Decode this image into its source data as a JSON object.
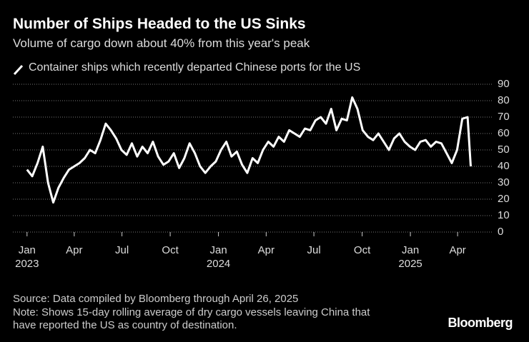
{
  "chart_data": {
    "type": "line",
    "title": "Number of Ships Headed to the US Sinks",
    "subtitle": "Volume of cargo down about 40% from this year's peak",
    "source": "Source: Data compiled by Bloomberg through April 26, 2025",
    "note": "Note: Shows 15-day rolling average of dry cargo vessels leaving China that have reported the US as country of destination.",
    "brand": "Bloomberg",
    "x": [
      "2023-01-01",
      "2023-01-11",
      "2023-01-21",
      "2023-01-31",
      "2023-02-10",
      "2023-02-20",
      "2023-03-02",
      "2023-03-12",
      "2023-03-22",
      "2023-04-01",
      "2023-04-11",
      "2023-04-21",
      "2023-05-01",
      "2023-05-11",
      "2023-05-21",
      "2023-05-31",
      "2023-06-10",
      "2023-06-20",
      "2023-06-30",
      "2023-07-10",
      "2023-07-20",
      "2023-07-30",
      "2023-08-09",
      "2023-08-19",
      "2023-08-29",
      "2023-09-08",
      "2023-09-18",
      "2023-09-28",
      "2023-10-08",
      "2023-10-18",
      "2023-10-28",
      "2023-11-07",
      "2023-11-17",
      "2023-11-27",
      "2023-12-07",
      "2023-12-17",
      "2023-12-27",
      "2024-01-06",
      "2024-01-16",
      "2024-01-26",
      "2024-02-05",
      "2024-02-15",
      "2024-02-25",
      "2024-03-06",
      "2024-03-16",
      "2024-03-26",
      "2024-04-05",
      "2024-04-15",
      "2024-04-25",
      "2024-05-05",
      "2024-05-15",
      "2024-05-25",
      "2024-06-04",
      "2024-06-14",
      "2024-06-24",
      "2024-07-04",
      "2024-07-14",
      "2024-07-24",
      "2024-08-03",
      "2024-08-13",
      "2024-08-23",
      "2024-09-02",
      "2024-09-12",
      "2024-09-22",
      "2024-10-02",
      "2024-10-12",
      "2024-10-22",
      "2024-11-01",
      "2024-11-11",
      "2024-11-21",
      "2024-12-01",
      "2024-12-11",
      "2024-12-21",
      "2024-12-31",
      "2025-01-10",
      "2025-01-20",
      "2025-01-30",
      "2025-02-09",
      "2025-02-19",
      "2025-03-01",
      "2025-03-11",
      "2025-03-21",
      "2025-03-31",
      "2025-04-10",
      "2025-04-20",
      "2025-04-26"
    ],
    "series": [
      {
        "name": "Container ships which recently departed Chinese ports for the US",
        "color": "#ffffff",
        "values": [
          38,
          34,
          42,
          52,
          30,
          18,
          27,
          33,
          38,
          40,
          42,
          45,
          50,
          48,
          56,
          66,
          62,
          57,
          50,
          47,
          54,
          46,
          52,
          48,
          55,
          46,
          41,
          43,
          48,
          39,
          45,
          54,
          48,
          40,
          36,
          40,
          43,
          50,
          55,
          46,
          49,
          41,
          36,
          45,
          42,
          50,
          55,
          52,
          58,
          55,
          62,
          60,
          58,
          63,
          62,
          68,
          70,
          66,
          75,
          62,
          69,
          68,
          82,
          75,
          62,
          58,
          56,
          60,
          55,
          50,
          57,
          60,
          55,
          52,
          50,
          55,
          56,
          52,
          55,
          54,
          48,
          42,
          50,
          69,
          70,
          40
        ]
      }
    ],
    "xlim": [
      "2022-12-05",
      "2025-06-08"
    ],
    "xticks": [
      {
        "value": "2023-01-01",
        "label": "Jan"
      },
      {
        "value": "2023-04-01",
        "label": "Apr"
      },
      {
        "value": "2023-07-01",
        "label": "Jul"
      },
      {
        "value": "2023-10-01",
        "label": "Oct"
      },
      {
        "value": "2024-01-01",
        "label": "Jan"
      },
      {
        "value": "2024-04-01",
        "label": "Apr"
      },
      {
        "value": "2024-07-01",
        "label": "Jul"
      },
      {
        "value": "2024-10-01",
        "label": "Oct"
      },
      {
        "value": "2025-01-01",
        "label": "Jan"
      },
      {
        "value": "2025-04-01",
        "label": "Apr"
      }
    ],
    "year_labels": [
      {
        "value": "2023-01-01",
        "label": "2023"
      },
      {
        "value": "2024-01-01",
        "label": "2024"
      },
      {
        "value": "2025-01-01",
        "label": "2025"
      }
    ],
    "ylim": [
      0,
      90
    ],
    "yticks": [
      0,
      10,
      20,
      30,
      40,
      50,
      60,
      70,
      80,
      90
    ],
    "grid": true
  }
}
